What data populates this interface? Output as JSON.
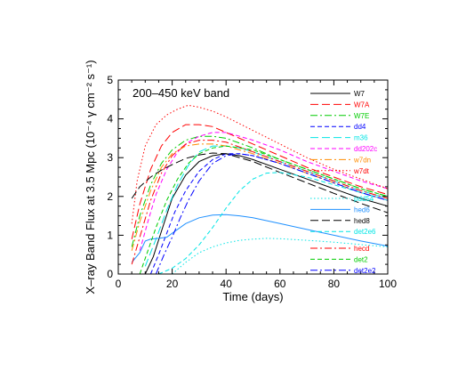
{
  "chart_data": {
    "type": "line",
    "annotation": "200–450 keV band",
    "xlabel": "Time (days)",
    "ylabel": "X–ray Band Flux at 3.5 Mpc (10⁻⁴ γ cm⁻² s⁻¹)",
    "xlim": [
      0,
      100
    ],
    "ylim": [
      0,
      5
    ],
    "xticks": [
      0,
      20,
      40,
      60,
      80,
      100
    ],
    "yticks": [
      0,
      1,
      2,
      3,
      4,
      5
    ],
    "grid": false,
    "legend_placement": "inside, right column in three groups",
    "series": [
      {
        "name": "W7",
        "color": "#000000",
        "dash": "solid",
        "x": [
          10,
          13,
          16,
          20,
          25,
          30,
          35,
          40,
          45,
          50,
          60,
          70,
          80,
          90,
          100
        ],
        "y": [
          0.0,
          0.45,
          1.1,
          1.95,
          2.55,
          2.9,
          3.05,
          3.1,
          3.05,
          2.95,
          2.7,
          2.45,
          2.2,
          1.95,
          1.75
        ]
      },
      {
        "name": "W7A",
        "color": "#ff0000",
        "dash": "longdash",
        "x": [
          5,
          8,
          12,
          16,
          20,
          25,
          30,
          35,
          40,
          50,
          60,
          70,
          80,
          90,
          100
        ],
        "y": [
          0.9,
          1.8,
          2.7,
          3.3,
          3.65,
          3.85,
          3.85,
          3.8,
          3.65,
          3.35,
          3.05,
          2.75,
          2.5,
          2.25,
          2.05
        ]
      },
      {
        "name": "W7E",
        "color": "#00cc00",
        "dash": "dashdot",
        "x": [
          5,
          8,
          12,
          16,
          20,
          25,
          30,
          35,
          40,
          50,
          60,
          70,
          80,
          90,
          100
        ],
        "y": [
          0.7,
          1.5,
          2.3,
          2.85,
          3.2,
          3.45,
          3.55,
          3.55,
          3.5,
          3.25,
          2.95,
          2.7,
          2.45,
          2.2,
          2.0
        ]
      },
      {
        "name": "dd4",
        "color": "#0000ff",
        "dash": "dash",
        "x": [
          12,
          15,
          18,
          21,
          25,
          30,
          35,
          40,
          45,
          50,
          60,
          70,
          80,
          90,
          100
        ],
        "y": [
          0.0,
          0.5,
          1.05,
          1.6,
          2.15,
          2.65,
          2.95,
          3.1,
          3.1,
          3.05,
          2.85,
          2.6,
          2.35,
          2.1,
          1.9
        ]
      },
      {
        "name": "m36",
        "color": "#00e5e5",
        "dash": "longdash",
        "x": [
          10,
          14,
          18,
          22,
          26,
          30,
          35,
          40,
          45,
          50,
          60,
          70,
          80,
          90,
          100
        ],
        "y": [
          0.2,
          0.9,
          1.65,
          2.3,
          2.8,
          3.15,
          3.3,
          3.3,
          3.25,
          3.15,
          2.9,
          2.65,
          2.4,
          2.15,
          1.95
        ]
      },
      {
        "name": "dd202c",
        "color": "#ff00ff",
        "dash": "dash",
        "x": [
          8,
          11,
          14,
          18,
          22,
          26,
          30,
          35,
          40,
          45,
          50,
          60,
          70,
          80,
          90,
          100
        ],
        "y": [
          0.6,
          1.35,
          2.05,
          2.7,
          3.15,
          3.4,
          3.55,
          3.65,
          3.65,
          3.55,
          3.45,
          3.2,
          2.9,
          2.65,
          2.4,
          2.2
        ]
      },
      {
        "name": "w7dn",
        "color": "#ff8c00",
        "dash": "dashdot",
        "x": [
          5,
          8,
          12,
          16,
          20,
          25,
          30,
          35,
          40,
          50,
          60,
          70,
          80,
          90,
          100
        ],
        "y": [
          0.6,
          1.35,
          2.15,
          2.75,
          3.1,
          3.3,
          3.35,
          3.35,
          3.3,
          3.1,
          2.85,
          2.6,
          2.35,
          2.1,
          1.9
        ]
      },
      {
        "name": "w7dt",
        "color": "#ff0000",
        "dash": "dot",
        "x": [
          5,
          7,
          10,
          14,
          18,
          22,
          26,
          30,
          35,
          40,
          50,
          60,
          70,
          80,
          90,
          100
        ],
        "y": [
          1.3,
          2.4,
          3.3,
          3.85,
          4.1,
          4.25,
          4.35,
          4.3,
          4.2,
          4.05,
          3.7,
          3.35,
          3.0,
          2.7,
          2.45,
          2.2
        ]
      },
      {
        "name": "pdd54",
        "color": "#00e5e5",
        "dash": "dot",
        "x": [
          20,
          25,
          30,
          35,
          40,
          45,
          50,
          55,
          60,
          70,
          80,
          90,
          100
        ],
        "y": [
          0.0,
          0.3,
          0.55,
          0.7,
          0.8,
          0.87,
          0.9,
          0.92,
          0.91,
          0.87,
          0.82,
          0.76,
          0.7
        ]
      },
      {
        "name": "hed6",
        "color": "#1e90ff",
        "dash": "solid",
        "x": [
          5,
          8,
          10,
          12,
          15,
          18,
          20,
          25,
          30,
          35,
          40,
          45,
          50,
          60,
          70,
          80,
          90,
          100
        ],
        "y": [
          0.3,
          0.55,
          0.85,
          0.9,
          0.92,
          0.95,
          1.05,
          1.3,
          1.45,
          1.52,
          1.53,
          1.5,
          1.45,
          1.3,
          1.15,
          1.0,
          0.85,
          0.72
        ]
      },
      {
        "name": "hed8",
        "color": "#000000",
        "dash": "longdash",
        "x": [
          5,
          8,
          12,
          16,
          20,
          25,
          30,
          35,
          40,
          50,
          60,
          70,
          80,
          90,
          100
        ],
        "y": [
          1.95,
          2.25,
          2.5,
          2.68,
          2.82,
          2.98,
          3.07,
          3.12,
          3.1,
          2.9,
          2.62,
          2.35,
          2.08,
          1.82,
          1.58
        ]
      },
      {
        "name": "det2e6",
        "color": "#00e5e5",
        "dash": "dash",
        "x": [
          15,
          20,
          25,
          30,
          35,
          40,
          45,
          50,
          55,
          60,
          70,
          80,
          90,
          100
        ],
        "y": [
          0.0,
          0.15,
          0.4,
          0.75,
          1.2,
          1.7,
          2.15,
          2.45,
          2.6,
          2.62,
          2.5,
          2.3,
          2.1,
          1.9
        ]
      },
      {
        "name": "hecd",
        "color": "#ff0000",
        "dash": "dashdot",
        "x": [
          5,
          8,
          12,
          16,
          20,
          25,
          30,
          35,
          40,
          50,
          60,
          70,
          80,
          90,
          100
        ],
        "y": [
          0.25,
          0.95,
          1.9,
          2.6,
          3.05,
          3.35,
          3.45,
          3.45,
          3.4,
          3.15,
          2.9,
          2.65,
          2.4,
          2.15,
          1.95
        ]
      },
      {
        "name": "det2",
        "color": "#00cc00",
        "dash": "dash",
        "x": [
          8,
          11,
          14,
          18,
          22,
          26,
          30,
          35,
          40,
          45,
          50,
          60,
          70,
          80,
          90,
          100
        ],
        "y": [
          0.0,
          0.6,
          1.2,
          1.9,
          2.45,
          2.85,
          3.1,
          3.25,
          3.3,
          3.25,
          3.2,
          2.95,
          2.7,
          2.45,
          2.2,
          2.0
        ]
      },
      {
        "name": "det2e2",
        "color": "#0000ff",
        "dash": "dashdot",
        "x": [
          14,
          17,
          20,
          23,
          26,
          30,
          35,
          40,
          45,
          50,
          60,
          70,
          80,
          90,
          100
        ],
        "y": [
          0.0,
          0.5,
          0.95,
          1.45,
          1.9,
          2.4,
          2.85,
          3.05,
          3.1,
          3.05,
          2.85,
          2.6,
          2.35,
          2.1,
          1.9
        ]
      }
    ],
    "legend_groups": [
      [
        "W7",
        "W7A",
        "W7E",
        "dd4",
        "m36",
        "dd202c",
        "w7dn",
        "w7dt"
      ],
      [
        "pdd54",
        "hed6",
        "hed8",
        "det2e6"
      ],
      [
        "hecd",
        "det2",
        "det2e2"
      ]
    ]
  }
}
